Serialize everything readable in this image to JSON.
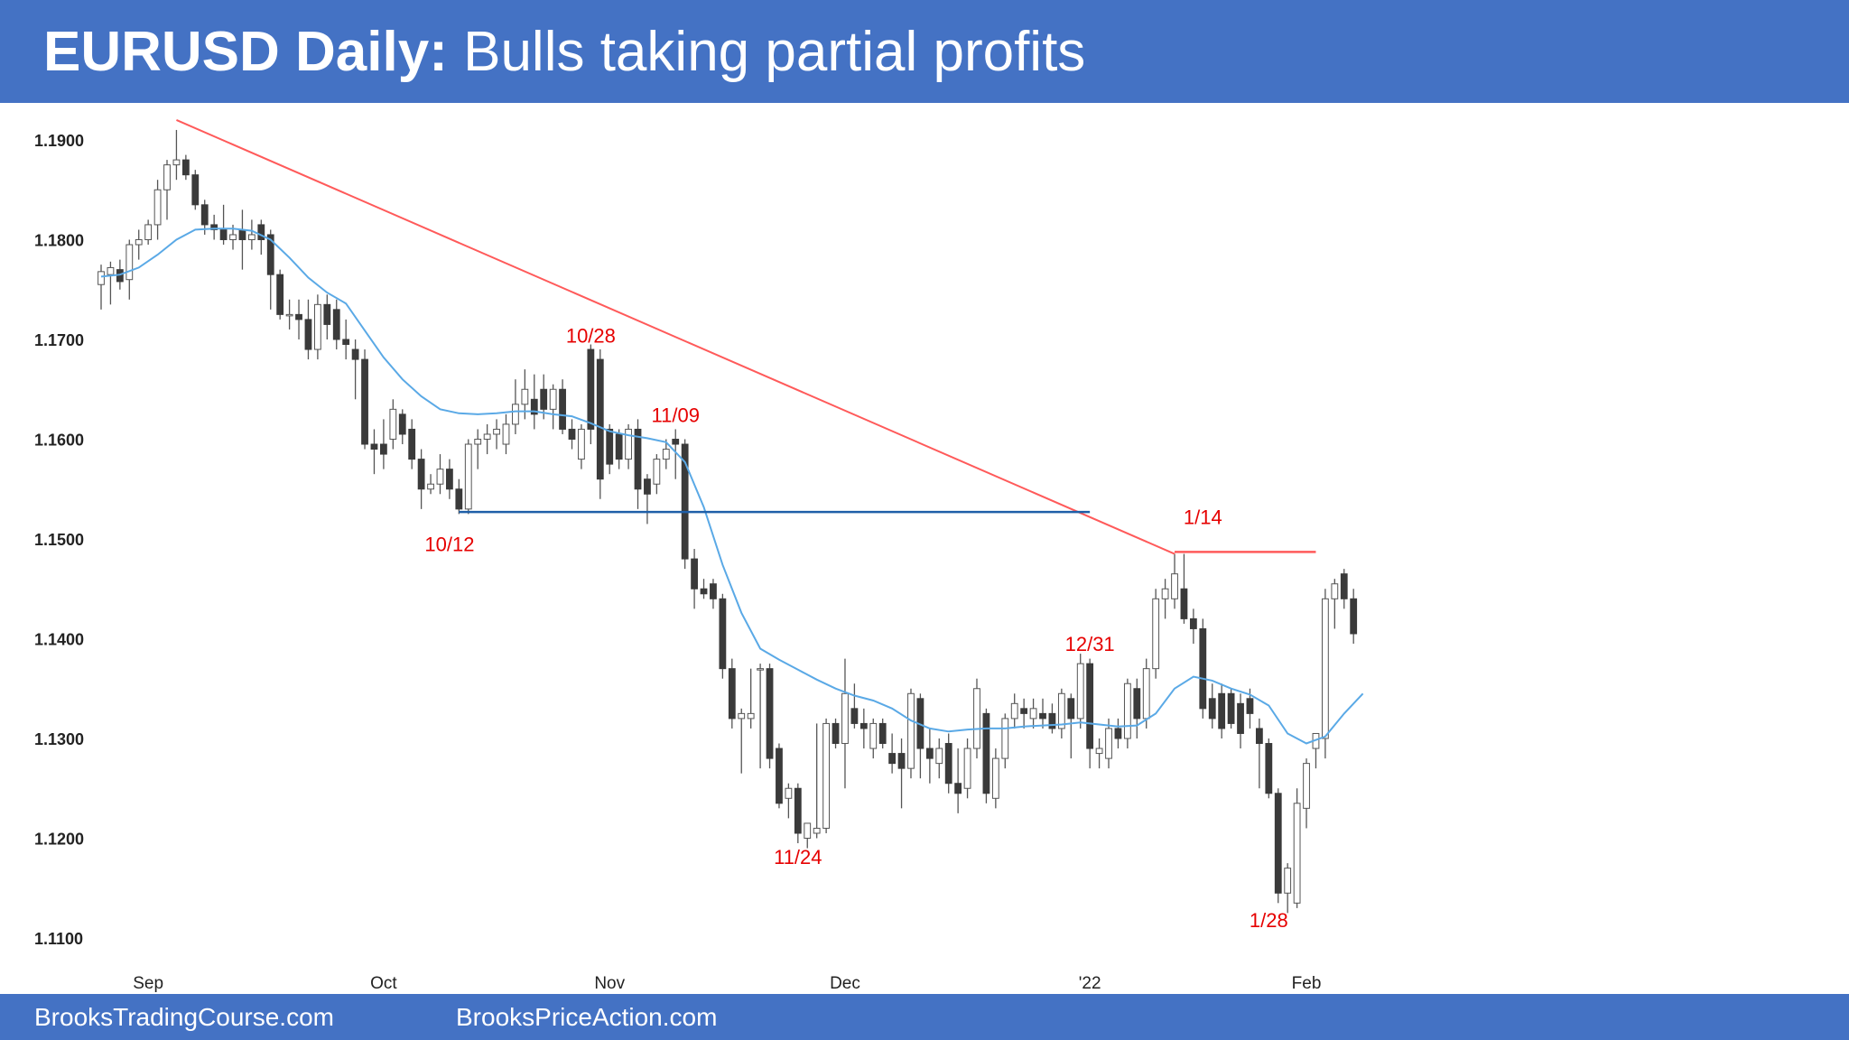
{
  "header": {
    "title_bold": "EURUSD Daily:",
    "title_rest": " Bulls taking partial profits"
  },
  "footer": {
    "link_1": "BrooksTradingCourse.com",
    "link_2": "BrooksPriceAction.com"
  },
  "colors": {
    "header_bg": "#4472c4",
    "bull_candle": "#ffffff",
    "bear_candle": "#3a3a3a",
    "moving_average": "#5aa9e6",
    "trend_line": "#ff5a5a",
    "support_line": "#1f5fa8",
    "annotation": "#e60000"
  },
  "chart_data": {
    "type": "candlestick",
    "instrument": "EURUSD",
    "timeframe": "Daily",
    "ylim": [
      1.1085,
      1.1935
    ],
    "yticks": [
      "1.1900",
      "1.1800",
      "1.1700",
      "1.1600",
      "1.1500",
      "1.1400",
      "1.1300",
      "1.1200",
      "1.1100"
    ],
    "ytick_values": [
      1.19,
      1.18,
      1.17,
      1.16,
      1.15,
      1.14,
      1.13,
      1.12,
      1.11
    ],
    "xticks": [
      {
        "label": "Sep",
        "index": 5
      },
      {
        "label": "Oct",
        "index": 30
      },
      {
        "label": "Nov",
        "index": 54
      },
      {
        "label": "Dec",
        "index": 79
      },
      {
        "label": "'22",
        "index": 105
      },
      {
        "label": "Feb",
        "index": 128
      }
    ],
    "candles": [
      [
        1.1755,
        1.1775,
        1.173,
        1.1768
      ],
      [
        1.1765,
        1.1778,
        1.1735,
        1.1772
      ],
      [
        1.177,
        1.178,
        1.175,
        1.1758
      ],
      [
        1.176,
        1.18,
        1.174,
        1.1795
      ],
      [
        1.1795,
        1.181,
        1.178,
        1.18
      ],
      [
        1.18,
        1.182,
        1.1795,
        1.1815
      ],
      [
        1.1815,
        1.186,
        1.18,
        1.185
      ],
      [
        1.185,
        1.188,
        1.182,
        1.1875
      ],
      [
        1.1875,
        1.191,
        1.186,
        1.188
      ],
      [
        1.188,
        1.1885,
        1.186,
        1.1865
      ],
      [
        1.1865,
        1.187,
        1.183,
        1.1835
      ],
      [
        1.1835,
        1.184,
        1.1805,
        1.1815
      ],
      [
        1.1815,
        1.1825,
        1.18,
        1.181
      ],
      [
        1.181,
        1.1835,
        1.1795,
        1.18
      ],
      [
        1.18,
        1.1815,
        1.179,
        1.1805
      ],
      [
        1.181,
        1.183,
        1.177,
        1.18
      ],
      [
        1.18,
        1.182,
        1.179,
        1.1805
      ],
      [
        1.1815,
        1.182,
        1.1785,
        1.18
      ],
      [
        1.1805,
        1.181,
        1.173,
        1.1765
      ],
      [
        1.1765,
        1.177,
        1.172,
        1.1725
      ],
      [
        1.1725,
        1.174,
        1.171,
        1.1725
      ],
      [
        1.1725,
        1.174,
        1.17,
        1.172
      ],
      [
        1.172,
        1.174,
        1.168,
        1.169
      ],
      [
        1.169,
        1.1745,
        1.168,
        1.1735
      ],
      [
        1.1735,
        1.1745,
        1.17,
        1.1715
      ],
      [
        1.173,
        1.174,
        1.169,
        1.17
      ],
      [
        1.17,
        1.172,
        1.168,
        1.1695
      ],
      [
        1.169,
        1.17,
        1.164,
        1.168
      ],
      [
        1.168,
        1.169,
        1.159,
        1.1595
      ],
      [
        1.1595,
        1.161,
        1.1565,
        1.159
      ],
      [
        1.1595,
        1.162,
        1.157,
        1.1585
      ],
      [
        1.16,
        1.164,
        1.159,
        1.163
      ],
      [
        1.1625,
        1.163,
        1.1595,
        1.1605
      ],
      [
        1.161,
        1.162,
        1.157,
        1.158
      ],
      [
        1.158,
        1.159,
        1.153,
        1.155
      ],
      [
        1.155,
        1.1565,
        1.1545,
        1.1555
      ],
      [
        1.1555,
        1.1585,
        1.1545,
        1.157
      ],
      [
        1.157,
        1.158,
        1.154,
        1.155
      ],
      [
        1.155,
        1.156,
        1.1525,
        1.153
      ],
      [
        1.153,
        1.16,
        1.1525,
        1.1595
      ],
      [
        1.1595,
        1.161,
        1.157,
        1.16
      ],
      [
        1.16,
        1.1615,
        1.1585,
        1.1605
      ],
      [
        1.1605,
        1.162,
        1.159,
        1.161
      ],
      [
        1.1595,
        1.1625,
        1.1585,
        1.1615
      ],
      [
        1.1615,
        1.166,
        1.1605,
        1.1635
      ],
      [
        1.1635,
        1.167,
        1.162,
        1.165
      ],
      [
        1.164,
        1.1665,
        1.161,
        1.1625
      ],
      [
        1.165,
        1.1665,
        1.162,
        1.163
      ],
      [
        1.163,
        1.1655,
        1.161,
        1.165
      ],
      [
        1.165,
        1.166,
        1.1605,
        1.161
      ],
      [
        1.161,
        1.162,
        1.159,
        1.16
      ],
      [
        1.158,
        1.1615,
        1.157,
        1.161
      ],
      [
        1.169,
        1.1695,
        1.1595,
        1.161
      ],
      [
        1.168,
        1.169,
        1.154,
        1.156
      ],
      [
        1.161,
        1.1615,
        1.1565,
        1.1575
      ],
      [
        1.1605,
        1.161,
        1.157,
        1.158
      ],
      [
        1.158,
        1.1615,
        1.157,
        1.161
      ],
      [
        1.161,
        1.162,
        1.153,
        1.155
      ],
      [
        1.156,
        1.1565,
        1.1515,
        1.1545
      ],
      [
        1.1555,
        1.1585,
        1.1545,
        1.158
      ],
      [
        1.158,
        1.16,
        1.157,
        1.159
      ],
      [
        1.16,
        1.161,
        1.156,
        1.1595
      ],
      [
        1.1595,
        1.16,
        1.147,
        1.148
      ],
      [
        1.148,
        1.149,
        1.143,
        1.145
      ],
      [
        1.145,
        1.146,
        1.144,
        1.1445
      ],
      [
        1.1455,
        1.146,
        1.143,
        1.144
      ],
      [
        1.144,
        1.1445,
        1.136,
        1.137
      ],
      [
        1.137,
        1.138,
        1.131,
        1.132
      ],
      [
        1.132,
        1.133,
        1.1265,
        1.1325
      ],
      [
        1.132,
        1.137,
        1.131,
        1.1325
      ],
      [
        1.137,
        1.1375,
        1.127,
        1.137
      ],
      [
        1.137,
        1.1375,
        1.127,
        1.128
      ],
      [
        1.129,
        1.1295,
        1.123,
        1.1235
      ],
      [
        1.124,
        1.1255,
        1.122,
        1.125
      ],
      [
        1.125,
        1.1255,
        1.1195,
        1.1205
      ],
      [
        1.12,
        1.1215,
        1.119,
        1.1215
      ],
      [
        1.1205,
        1.1315,
        1.12,
        1.121
      ],
      [
        1.121,
        1.132,
        1.1205,
        1.1315
      ],
      [
        1.1315,
        1.132,
        1.129,
        1.1295
      ],
      [
        1.1295,
        1.138,
        1.125,
        1.1345
      ],
      [
        1.133,
        1.1355,
        1.131,
        1.1315
      ],
      [
        1.1315,
        1.133,
        1.129,
        1.131
      ],
      [
        1.129,
        1.132,
        1.128,
        1.1315
      ],
      [
        1.1315,
        1.132,
        1.129,
        1.1295
      ],
      [
        1.1285,
        1.1305,
        1.1265,
        1.1275
      ],
      [
        1.1285,
        1.13,
        1.123,
        1.127
      ],
      [
        1.127,
        1.135,
        1.126,
        1.1345
      ],
      [
        1.134,
        1.1345,
        1.126,
        1.129
      ],
      [
        1.129,
        1.131,
        1.1255,
        1.128
      ],
      [
        1.1275,
        1.13,
        1.126,
        1.129
      ],
      [
        1.1295,
        1.1305,
        1.1245,
        1.1255
      ],
      [
        1.1255,
        1.129,
        1.1225,
        1.1245
      ],
      [
        1.125,
        1.13,
        1.124,
        1.129
      ],
      [
        1.129,
        1.136,
        1.128,
        1.135
      ],
      [
        1.1325,
        1.133,
        1.1235,
        1.1245
      ],
      [
        1.124,
        1.129,
        1.123,
        1.128
      ],
      [
        1.128,
        1.1325,
        1.127,
        1.132
      ],
      [
        1.132,
        1.1345,
        1.131,
        1.1335
      ],
      [
        1.133,
        1.134,
        1.131,
        1.1325
      ],
      [
        1.132,
        1.134,
        1.131,
        1.133
      ],
      [
        1.1325,
        1.134,
        1.131,
        1.132
      ],
      [
        1.1325,
        1.1335,
        1.1305,
        1.131
      ],
      [
        1.131,
        1.135,
        1.13,
        1.1345
      ],
      [
        1.134,
        1.1345,
        1.128,
        1.132
      ],
      [
        1.132,
        1.1385,
        1.131,
        1.1375
      ],
      [
        1.1375,
        1.138,
        1.127,
        1.129
      ],
      [
        1.1285,
        1.13,
        1.127,
        1.129
      ],
      [
        1.128,
        1.132,
        1.127,
        1.131
      ],
      [
        1.131,
        1.132,
        1.129,
        1.13
      ],
      [
        1.13,
        1.136,
        1.129,
        1.1355
      ],
      [
        1.135,
        1.136,
        1.13,
        1.132
      ],
      [
        1.132,
        1.138,
        1.131,
        1.137
      ],
      [
        1.137,
        1.145,
        1.136,
        1.144
      ],
      [
        1.144,
        1.146,
        1.142,
        1.145
      ],
      [
        1.144,
        1.1485,
        1.143,
        1.1465
      ],
      [
        1.145,
        1.1485,
        1.1415,
        1.142
      ],
      [
        1.142,
        1.143,
        1.1395,
        1.141
      ],
      [
        1.141,
        1.142,
        1.132,
        1.133
      ],
      [
        1.134,
        1.1355,
        1.131,
        1.132
      ],
      [
        1.1345,
        1.1355,
        1.13,
        1.131
      ],
      [
        1.1345,
        1.135,
        1.131,
        1.1315
      ],
      [
        1.1335,
        1.1345,
        1.129,
        1.1305
      ],
      [
        1.134,
        1.135,
        1.131,
        1.1325
      ],
      [
        1.131,
        1.132,
        1.125,
        1.1295
      ],
      [
        1.1295,
        1.13,
        1.124,
        1.1245
      ],
      [
        1.1245,
        1.125,
        1.1135,
        1.1145
      ],
      [
        1.1145,
        1.1175,
        1.1125,
        1.117
      ],
      [
        1.1135,
        1.125,
        1.113,
        1.1235
      ],
      [
        1.123,
        1.128,
        1.121,
        1.1275
      ],
      [
        1.129,
        1.1305,
        1.127,
        1.1305
      ],
      [
        1.13,
        1.145,
        1.128,
        1.144
      ],
      [
        1.144,
        1.146,
        1.141,
        1.1455
      ],
      [
        1.1465,
        1.147,
        1.143,
        1.144
      ],
      [
        1.144,
        1.145,
        1.1395,
        1.1405
      ]
    ],
    "moving_average": [
      [
        0,
        1.1763
      ],
      [
        2,
        1.1765
      ],
      [
        4,
        1.1772
      ],
      [
        6,
        1.1785
      ],
      [
        8,
        1.18
      ],
      [
        10,
        1.181
      ],
      [
        12,
        1.1811
      ],
      [
        14,
        1.1811
      ],
      [
        16,
        1.1809
      ],
      [
        18,
        1.18
      ],
      [
        20,
        1.1782
      ],
      [
        22,
        1.1762
      ],
      [
        24,
        1.1747
      ],
      [
        26,
        1.1736
      ],
      [
        28,
        1.1709
      ],
      [
        30,
        1.1682
      ],
      [
        32,
        1.166
      ],
      [
        34,
        1.1643
      ],
      [
        36,
        1.163
      ],
      [
        38,
        1.1626
      ],
      [
        40,
        1.1625
      ],
      [
        42,
        1.1626
      ],
      [
        44,
        1.1628
      ],
      [
        46,
        1.1628
      ],
      [
        48,
        1.1625
      ],
      [
        50,
        1.1623
      ],
      [
        52,
        1.1616
      ],
      [
        54,
        1.1608
      ],
      [
        56,
        1.1604
      ],
      [
        58,
        1.1601
      ],
      [
        60,
        1.1597
      ],
      [
        62,
        1.1577
      ],
      [
        64,
        1.1532
      ],
      [
        66,
        1.1474
      ],
      [
        68,
        1.1426
      ],
      [
        70,
        1.139
      ],
      [
        72,
        1.1379
      ],
      [
        74,
        1.1369
      ],
      [
        76,
        1.1359
      ],
      [
        78,
        1.135
      ],
      [
        80,
        1.1343
      ],
      [
        82,
        1.1338
      ],
      [
        84,
        1.133
      ],
      [
        86,
        1.1318
      ],
      [
        88,
        1.131
      ],
      [
        90,
        1.1307
      ],
      [
        92,
        1.1309
      ],
      [
        94,
        1.131
      ],
      [
        96,
        1.131
      ],
      [
        98,
        1.1312
      ],
      [
        100,
        1.1313
      ],
      [
        102,
        1.1314
      ],
      [
        104,
        1.1316
      ],
      [
        106,
        1.1314
      ],
      [
        108,
        1.1312
      ],
      [
        110,
        1.1313
      ],
      [
        112,
        1.1325
      ],
      [
        114,
        1.135
      ],
      [
        116,
        1.1362
      ],
      [
        118,
        1.1358
      ],
      [
        120,
        1.135
      ],
      [
        122,
        1.1344
      ],
      [
        124,
        1.1333
      ],
      [
        126,
        1.1305
      ],
      [
        128,
        1.1295
      ],
      [
        130,
        1.1302
      ],
      [
        132,
        1.1325
      ],
      [
        134,
        1.1345
      ]
    ],
    "trend_line": {
      "from": [
        8,
        1.192
      ],
      "to": [
        114,
        1.1485
      ]
    },
    "support_line": {
      "from": [
        38,
        1.1527
      ],
      "to": [
        105,
        1.1527
      ]
    },
    "resistance_line": {
      "from": [
        114,
        1.1487
      ],
      "to": [
        129,
        1.1487
      ]
    },
    "annotations": [
      {
        "text": "10/28",
        "index": 52,
        "price": 1.1697
      },
      {
        "text": "11/09",
        "index": 61,
        "price": 1.1617
      },
      {
        "text": "10/12",
        "index": 37,
        "price": 1.1488
      },
      {
        "text": "1/14",
        "index": 117,
        "price": 1.1515
      },
      {
        "text": "12/31",
        "index": 105,
        "price": 1.1388
      },
      {
        "text": "11/24",
        "index": 74,
        "price": 1.1174
      },
      {
        "text": "1/28",
        "index": 124,
        "price": 1.1111
      }
    ]
  }
}
